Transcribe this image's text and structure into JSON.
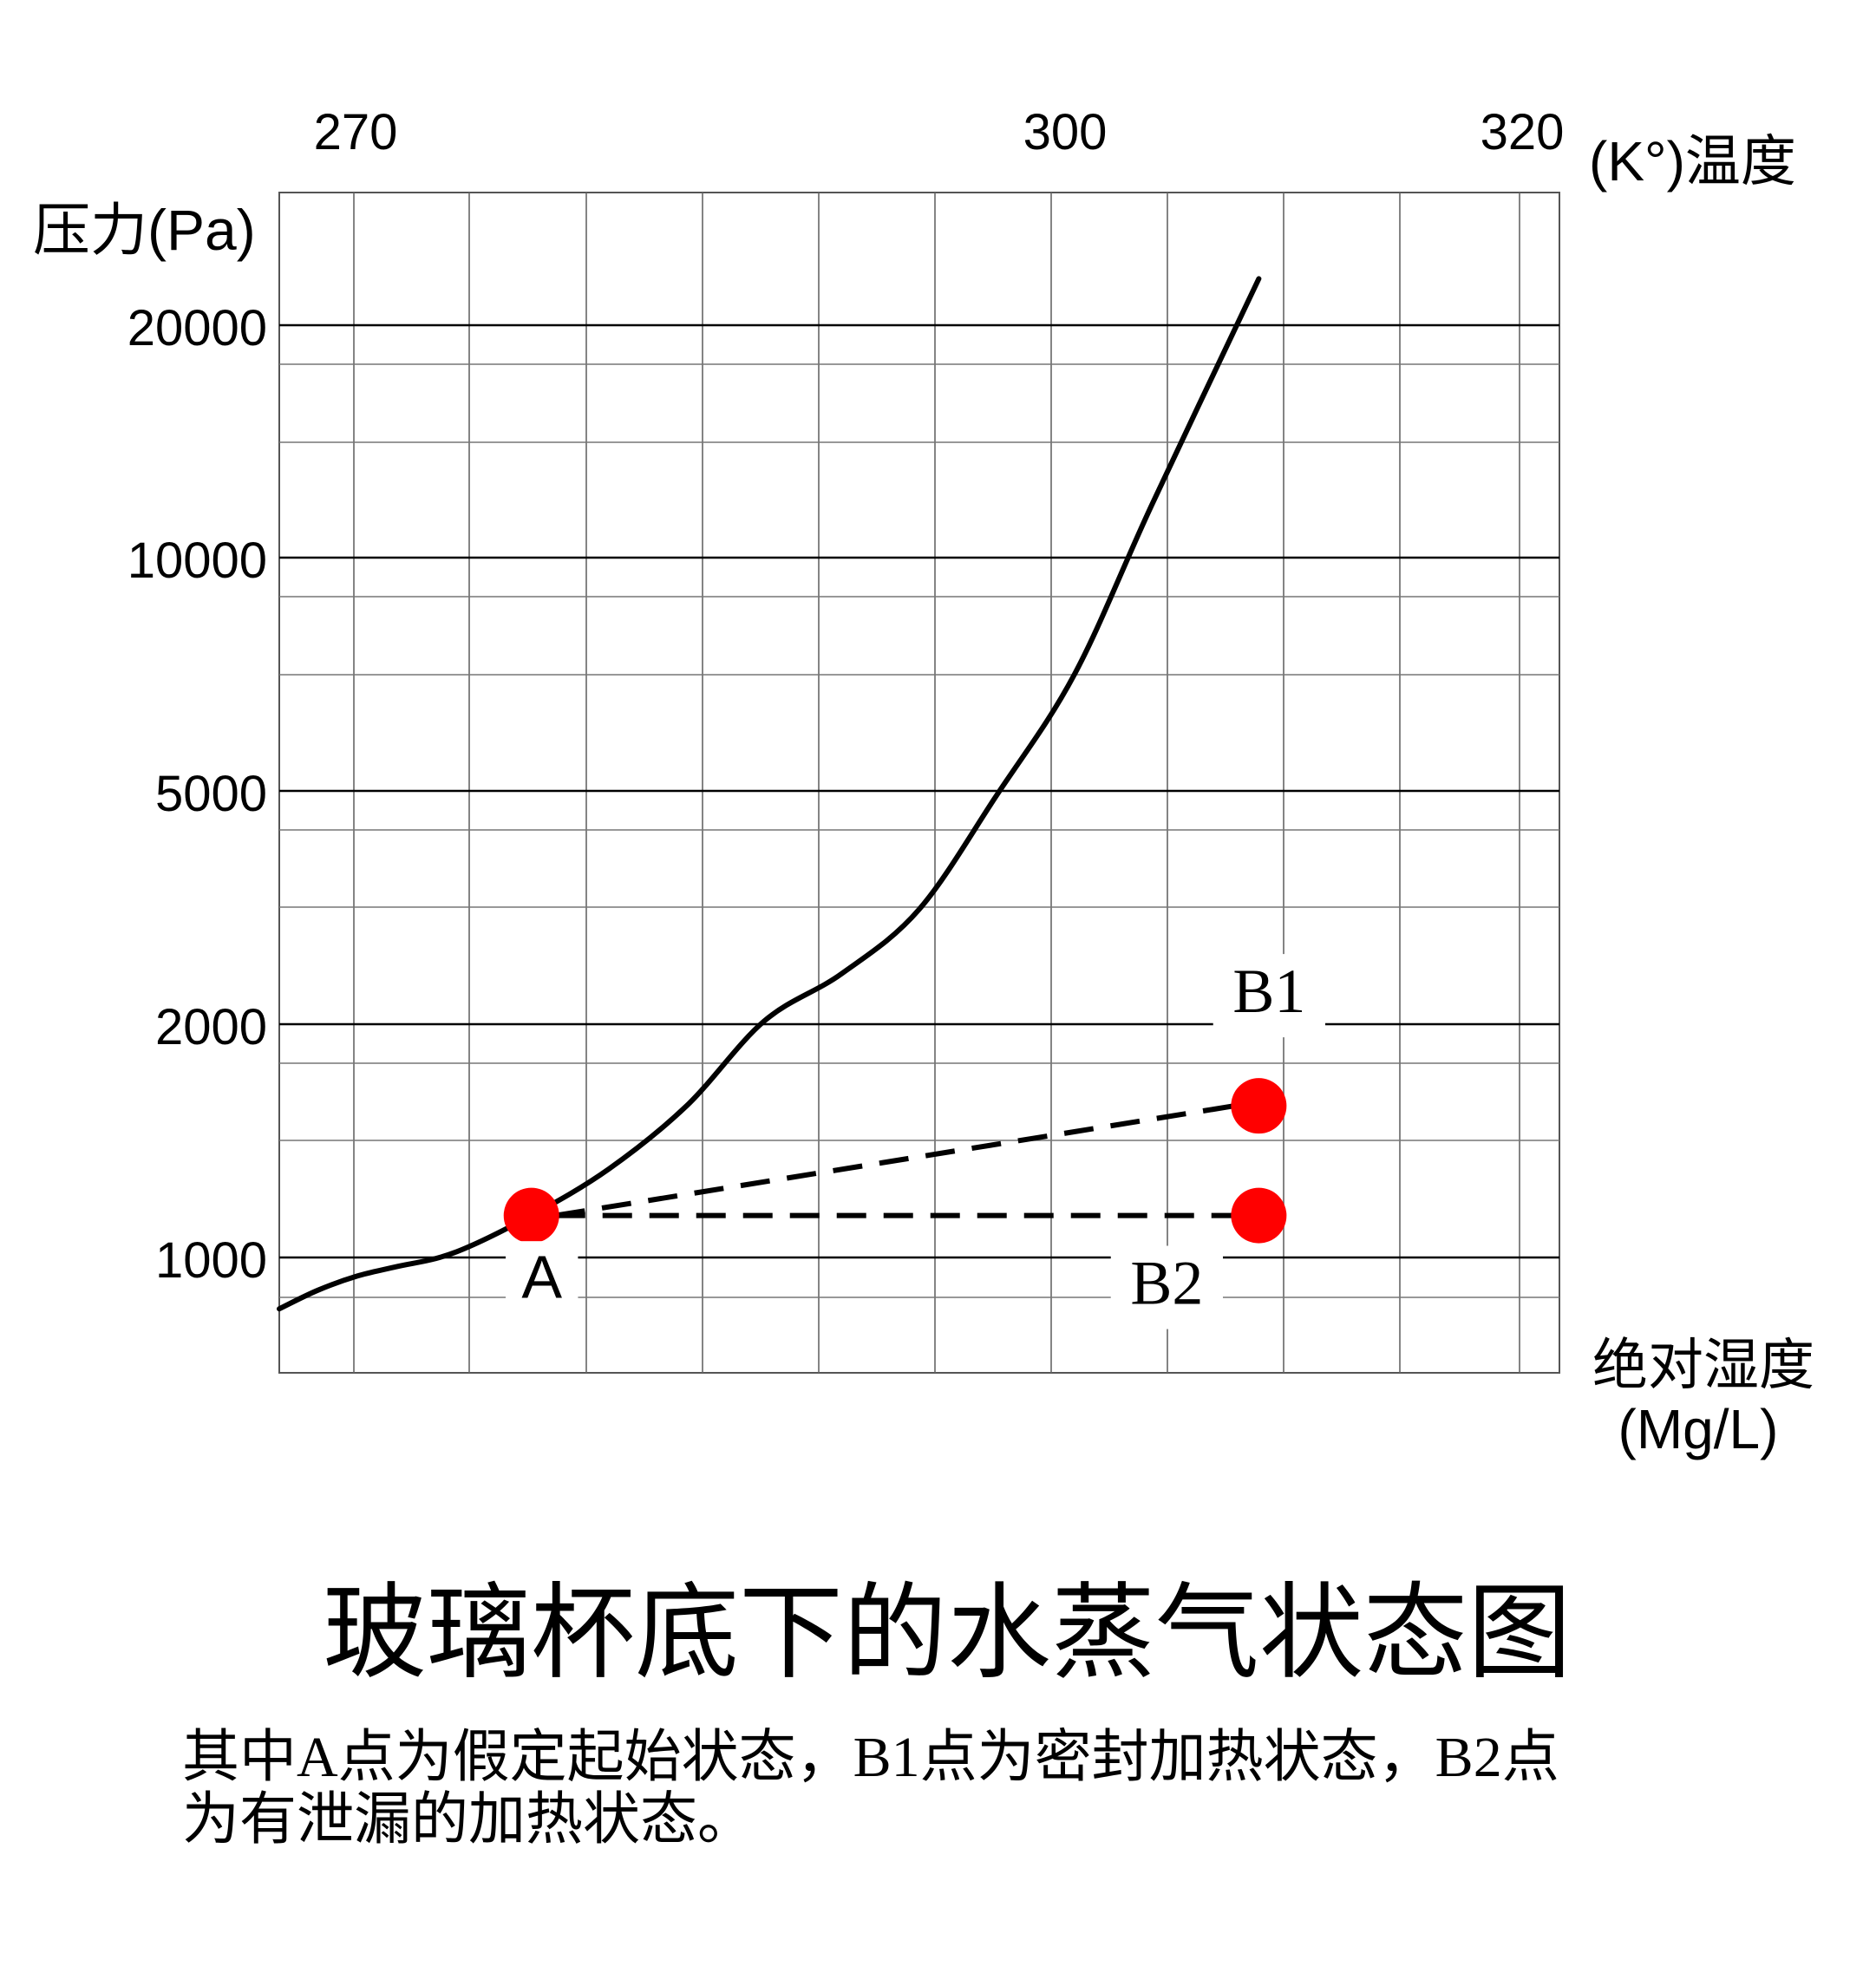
{
  "chart_data": {
    "type": "line",
    "title": "玻璃杯底下的水蒸气状态图",
    "caption_lines": [
      "其中A点为假定起始状态，B1点为密封加热状态，B2点",
      "为有泄漏的加热状态。"
    ],
    "x_axis": {
      "label": "(K°)温度",
      "position": "top",
      "unit": "K",
      "range": [
        266,
        332
      ],
      "tick_values": [
        270,
        300,
        320
      ],
      "tick_labels": [
        "270",
        "300",
        "320"
      ]
    },
    "x_axis_bottom": {
      "label_lines": [
        "绝对湿度",
        "(Mg/L)"
      ]
    },
    "y_axis": {
      "label": "压力(Pa)",
      "unit": "Pa",
      "tick_values": [
        1000,
        2000,
        5000,
        10000,
        20000
      ],
      "tick_labels": [
        "1000",
        "2000",
        "5000",
        "10000",
        "20000"
      ]
    },
    "grid": true,
    "series": [
      {
        "kind": "saturation-curve",
        "color": "#000000",
        "x": [
          266.0,
          268.0,
          270.0,
          272.0,
          275.0,
          279.0,
          283.0,
          287.0,
          291.0,
          295.0,
          299.0,
          303.0,
          307.0,
          311.0,
          316.5
        ],
        "y": [
          780,
          860,
          920,
          960,
          1020,
          1180,
          1380,
          1650,
          2040,
          2650,
          3480,
          4950,
          7500,
          12300,
          22000
        ]
      }
    ],
    "points": [
      {
        "label": "A",
        "x": 279,
        "y": 1180,
        "color": "#ff0000"
      },
      {
        "label": "B1",
        "x": 316.5,
        "y": 1650,
        "color": "#ff0000"
      },
      {
        "label": "B2",
        "x": 316.5,
        "y": 1180,
        "color": "#ff0000"
      }
    ],
    "dashed_lines": [
      {
        "from": "A",
        "to": "B1",
        "color": "#000000"
      },
      {
        "from": "A",
        "to": "B2",
        "color": "#000000"
      }
    ]
  }
}
